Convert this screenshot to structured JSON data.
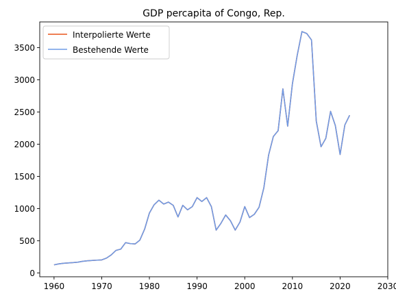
{
  "chart_data": {
    "type": "line",
    "title": "GDP percapita of Congo, Rep.",
    "xlabel": "",
    "ylabel": "",
    "xlim": [
      1957,
      2030
    ],
    "ylim": [
      -60,
      3900
    ],
    "xticks": [
      1960,
      1970,
      1980,
      1990,
      2000,
      2010,
      2020,
      2030
    ],
    "yticks": [
      0,
      500,
      1000,
      1500,
      2000,
      2500,
      3000,
      3500
    ],
    "grid": false,
    "legend_position": "top-left",
    "x": [
      1960,
      1961,
      1962,
      1963,
      1964,
      1965,
      1966,
      1967,
      1968,
      1969,
      1970,
      1971,
      1972,
      1973,
      1974,
      1975,
      1976,
      1977,
      1978,
      1979,
      1980,
      1981,
      1982,
      1983,
      1984,
      1985,
      1986,
      1987,
      1988,
      1989,
      1990,
      1991,
      1992,
      1993,
      1994,
      1995,
      1996,
      1997,
      1998,
      1999,
      2000,
      2001,
      2002,
      2003,
      2004,
      2005,
      2006,
      2007,
      2008,
      2009,
      2010,
      2011,
      2012,
      2013,
      2014,
      2015,
      2016,
      2017,
      2018,
      2019,
      2020,
      2021,
      2022
    ],
    "series": [
      {
        "name": "Interpolierte Werte",
        "color": "#e8551a",
        "values": [
          125,
          140,
          150,
          155,
          160,
          167,
          180,
          188,
          193,
          198,
          202,
          230,
          280,
          350,
          370,
          470,
          455,
          450,
          510,
          680,
          930,
          1060,
          1130,
          1070,
          1100,
          1050,
          870,
          1050,
          980,
          1030,
          1170,
          1110,
          1170,
          1030,
          665,
          770,
          900,
          810,
          665,
          790,
          1030,
          860,
          910,
          1020,
          1320,
          1830,
          2120,
          2210,
          2860,
          2280,
          2940,
          3380,
          3750,
          3720,
          3620,
          2360,
          1960,
          2090,
          2510,
          2290,
          1840,
          2300,
          2450
        ]
      },
      {
        "name": "Bestehende Werte",
        "color": "#6f9be6",
        "values": [
          125,
          140,
          150,
          155,
          160,
          167,
          180,
          188,
          193,
          198,
          202,
          230,
          280,
          350,
          370,
          470,
          455,
          450,
          510,
          680,
          930,
          1060,
          1130,
          1070,
          1100,
          1050,
          870,
          1050,
          980,
          1030,
          1170,
          1110,
          1170,
          1030,
          665,
          770,
          900,
          810,
          665,
          790,
          1030,
          860,
          910,
          1020,
          1320,
          1830,
          2120,
          2210,
          2860,
          2280,
          2940,
          3380,
          3750,
          3720,
          3620,
          2360,
          1960,
          2090,
          2510,
          2290,
          1840,
          2300,
          2450
        ]
      }
    ]
  }
}
